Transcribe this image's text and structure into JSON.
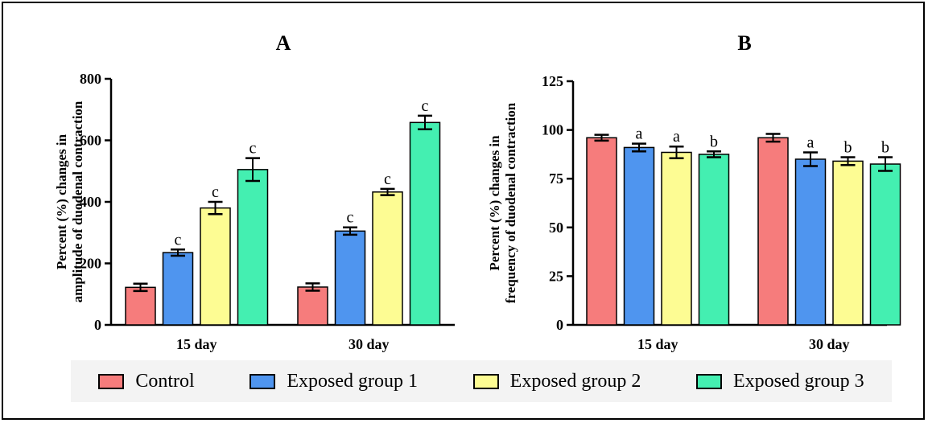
{
  "colors": {
    "control": "#f67c7c",
    "exposed1": "#4f95ef",
    "exposed2": "#fdfc93",
    "exposed3": "#44efb1"
  },
  "legend": [
    {
      "label": "Control",
      "color": "#f67c7c"
    },
    {
      "label": "Exposed group 1",
      "color": "#4f95ef"
    },
    {
      "label": "Exposed group 2",
      "color": "#fdfc93"
    },
    {
      "label": "Exposed group 3",
      "color": "#44efb1"
    }
  ],
  "chart_data": [
    {
      "type": "bar",
      "title": "A",
      "xlabel": "",
      "ylabel": "Percent (%) changes in amplitude of duodenal contraction",
      "ylabel_lines": [
        "Percent (%) changes in",
        "amplitude of duodenal contraction"
      ],
      "categories": [
        "15 day",
        "30 day"
      ],
      "ylim": [
        0,
        800
      ],
      "yticks": [
        0,
        200,
        400,
        600,
        800
      ],
      "series": [
        {
          "name": "Control",
          "values": [
            122,
            123
          ],
          "errors": [
            12,
            12
          ],
          "labels": [
            "",
            ""
          ]
        },
        {
          "name": "Exposed group 1",
          "values": [
            235,
            305
          ],
          "errors": [
            10,
            12
          ],
          "labels": [
            "c",
            "c"
          ]
        },
        {
          "name": "Exposed group 2",
          "values": [
            380,
            432
          ],
          "errors": [
            20,
            10
          ],
          "labels": [
            "c",
            "c"
          ]
        },
        {
          "name": "Exposed group 3",
          "values": [
            505,
            658
          ],
          "errors": [
            37,
            22
          ],
          "labels": [
            "c",
            "c"
          ]
        }
      ]
    },
    {
      "type": "bar",
      "title": "B",
      "xlabel": "",
      "ylabel": "Percent (%) changes in frequency of duodenal contraction",
      "ylabel_lines": [
        "Percent (%) changes in",
        "frequency of duodenal contraction"
      ],
      "categories": [
        "15 day",
        "30 day"
      ],
      "ylim": [
        0,
        125
      ],
      "yticks": [
        0,
        25,
        50,
        75,
        100,
        125
      ],
      "series": [
        {
          "name": "Control",
          "values": [
            96,
            96
          ],
          "errors": [
            1.5,
            2
          ],
          "labels": [
            "",
            ""
          ]
        },
        {
          "name": "Exposed group 1",
          "values": [
            91,
            85
          ],
          "errors": [
            2,
            3.5
          ],
          "labels": [
            "a",
            "a"
          ]
        },
        {
          "name": "Exposed group 2",
          "values": [
            88.5,
            84
          ],
          "errors": [
            3,
            2
          ],
          "labels": [
            "a",
            "b"
          ]
        },
        {
          "name": "Exposed group 3",
          "values": [
            87.5,
            82.5
          ],
          "errors": [
            1.5,
            3.5
          ],
          "labels": [
            "b",
            "b"
          ]
        }
      ]
    }
  ]
}
